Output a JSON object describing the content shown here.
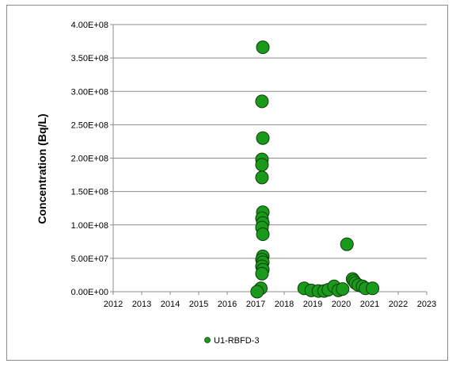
{
  "chart_data": {
    "type": "scatter",
    "title": "",
    "xlabel": "",
    "ylabel": "Concentration (Bq/L)",
    "xlim": [
      2012,
      2023
    ],
    "ylim": [
      0,
      400000000
    ],
    "x_ticks": [
      2012,
      2013,
      2014,
      2015,
      2016,
      2017,
      2018,
      2019,
      2020,
      2021,
      2022,
      2023
    ],
    "y_ticks": [
      0,
      50000000,
      100000000,
      150000000,
      200000000,
      250000000,
      300000000,
      350000000,
      400000000
    ],
    "y_tick_labels": [
      "0.00E+00",
      "5.00E+07",
      "1.00E+08",
      "1.50E+08",
      "2.00E+08",
      "2.50E+08",
      "3.00E+08",
      "3.50E+08",
      "4.00E+08"
    ],
    "grid": "horizontal",
    "legend_position": "bottom",
    "series": [
      {
        "name": "U1-RBFD-3",
        "color": "#1a9a1a",
        "points": [
          {
            "x": 2017.25,
            "y": 366000000
          },
          {
            "x": 2017.22,
            "y": 285000000
          },
          {
            "x": 2017.25,
            "y": 230000000
          },
          {
            "x": 2017.22,
            "y": 198000000
          },
          {
            "x": 2017.22,
            "y": 190000000
          },
          {
            "x": 2017.22,
            "y": 171000000
          },
          {
            "x": 2017.25,
            "y": 119000000
          },
          {
            "x": 2017.22,
            "y": 110000000
          },
          {
            "x": 2017.25,
            "y": 103000000
          },
          {
            "x": 2017.22,
            "y": 96000000
          },
          {
            "x": 2017.25,
            "y": 86000000
          },
          {
            "x": 2017.25,
            "y": 53000000
          },
          {
            "x": 2017.22,
            "y": 48000000
          },
          {
            "x": 2017.25,
            "y": 44000000
          },
          {
            "x": 2017.22,
            "y": 38000000
          },
          {
            "x": 2017.25,
            "y": 33000000
          },
          {
            "x": 2017.22,
            "y": 27000000
          },
          {
            "x": 2017.18,
            "y": 5000000
          },
          {
            "x": 2017.05,
            "y": 0
          },
          {
            "x": 2018.7,
            "y": 5000000
          },
          {
            "x": 2018.95,
            "y": 2000000
          },
          {
            "x": 2019.2,
            "y": 1000000
          },
          {
            "x": 2019.4,
            "y": 1000000
          },
          {
            "x": 2019.55,
            "y": 3000000
          },
          {
            "x": 2019.75,
            "y": 8000000
          },
          {
            "x": 2019.9,
            "y": 2000000
          },
          {
            "x": 2020.05,
            "y": 4000000
          },
          {
            "x": 2020.2,
            "y": 71000000
          },
          {
            "x": 2020.4,
            "y": 19000000
          },
          {
            "x": 2020.45,
            "y": 16000000
          },
          {
            "x": 2020.5,
            "y": 13000000
          },
          {
            "x": 2020.6,
            "y": 10000000
          },
          {
            "x": 2020.75,
            "y": 8000000
          },
          {
            "x": 2020.85,
            "y": 5000000
          },
          {
            "x": 2021.1,
            "y": 5000000
          }
        ]
      }
    ]
  }
}
